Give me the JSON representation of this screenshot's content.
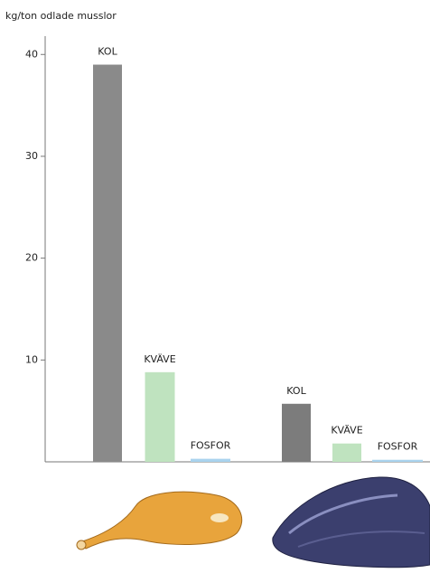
{
  "chart_data": {
    "type": "bar",
    "y_label": "kg/ton odlade musslor",
    "categories": [
      "KOL",
      "KVÄVE",
      "FOSFOR",
      "KOL",
      "KVÄVE",
      "FOSFOR"
    ],
    "values": [
      39,
      8.8,
      0.3,
      5.7,
      1.8,
      0.2
    ],
    "colors": [
      "#8a8a8a",
      "#bfe3bf",
      "#a9d3ee",
      "#7c7c7c",
      "#bfe3bf",
      "#a9d3ee"
    ],
    "ylim": [
      0,
      41
    ],
    "yticks": [
      10,
      20,
      30,
      40
    ]
  }
}
